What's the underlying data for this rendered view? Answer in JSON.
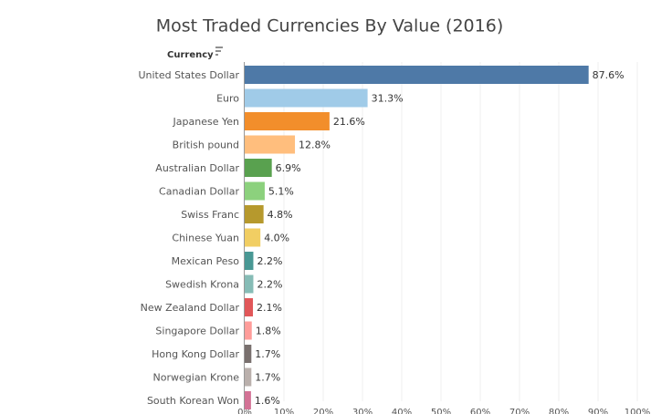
{
  "chart_data": {
    "type": "bar",
    "orientation": "horizontal",
    "title": "Most Traded Currencies By Value (2016)",
    "category_header": "Currency",
    "categories": [
      "United States Dollar",
      "Euro",
      "Japanese Yen",
      "British pound",
      "Australian Dollar",
      "Canadian Dollar",
      "Swiss Franc",
      "Chinese Yuan",
      "Mexican Peso",
      "Swedish Krona",
      "New Zealand Dollar",
      "Singapore Dollar",
      "Hong Kong Dollar",
      "Norwegian Krone",
      "South Korean Won"
    ],
    "values": [
      87.6,
      31.3,
      21.6,
      12.8,
      6.9,
      5.1,
      4.8,
      4.0,
      2.2,
      2.2,
      2.1,
      1.8,
      1.7,
      1.7,
      1.6
    ],
    "value_labels": [
      "87.6%",
      "31.3%",
      "21.6%",
      "12.8%",
      "6.9%",
      "5.1%",
      "4.8%",
      "4.0%",
      "2.2%",
      "2.2%",
      "2.1%",
      "1.8%",
      "1.7%",
      "1.7%",
      "1.6%"
    ],
    "colors": [
      "#4e79a7",
      "#a0cbe8",
      "#f28e2b",
      "#ffbe7d",
      "#59a14f",
      "#8cd17d",
      "#b6992d",
      "#f1ce63",
      "#499894",
      "#86bcb6",
      "#e15759",
      "#ff9d9a",
      "#79706e",
      "#bab0ac",
      "#d37295"
    ],
    "xlim": [
      0,
      100
    ],
    "xticks": [
      {
        "value": 0,
        "label": "0%"
      },
      {
        "value": 10,
        "label": "10%"
      },
      {
        "value": 20,
        "label": "20%"
      },
      {
        "value": 30,
        "label": "30%"
      },
      {
        "value": 40,
        "label": "40%"
      },
      {
        "value": 50,
        "label": "50%"
      },
      {
        "value": 60,
        "label": "60%"
      },
      {
        "value": 70,
        "label": "70%"
      },
      {
        "value": 80,
        "label": "80%"
      },
      {
        "value": 90,
        "label": "90%"
      },
      {
        "value": 100,
        "label": "100%"
      }
    ],
    "grid": true
  }
}
